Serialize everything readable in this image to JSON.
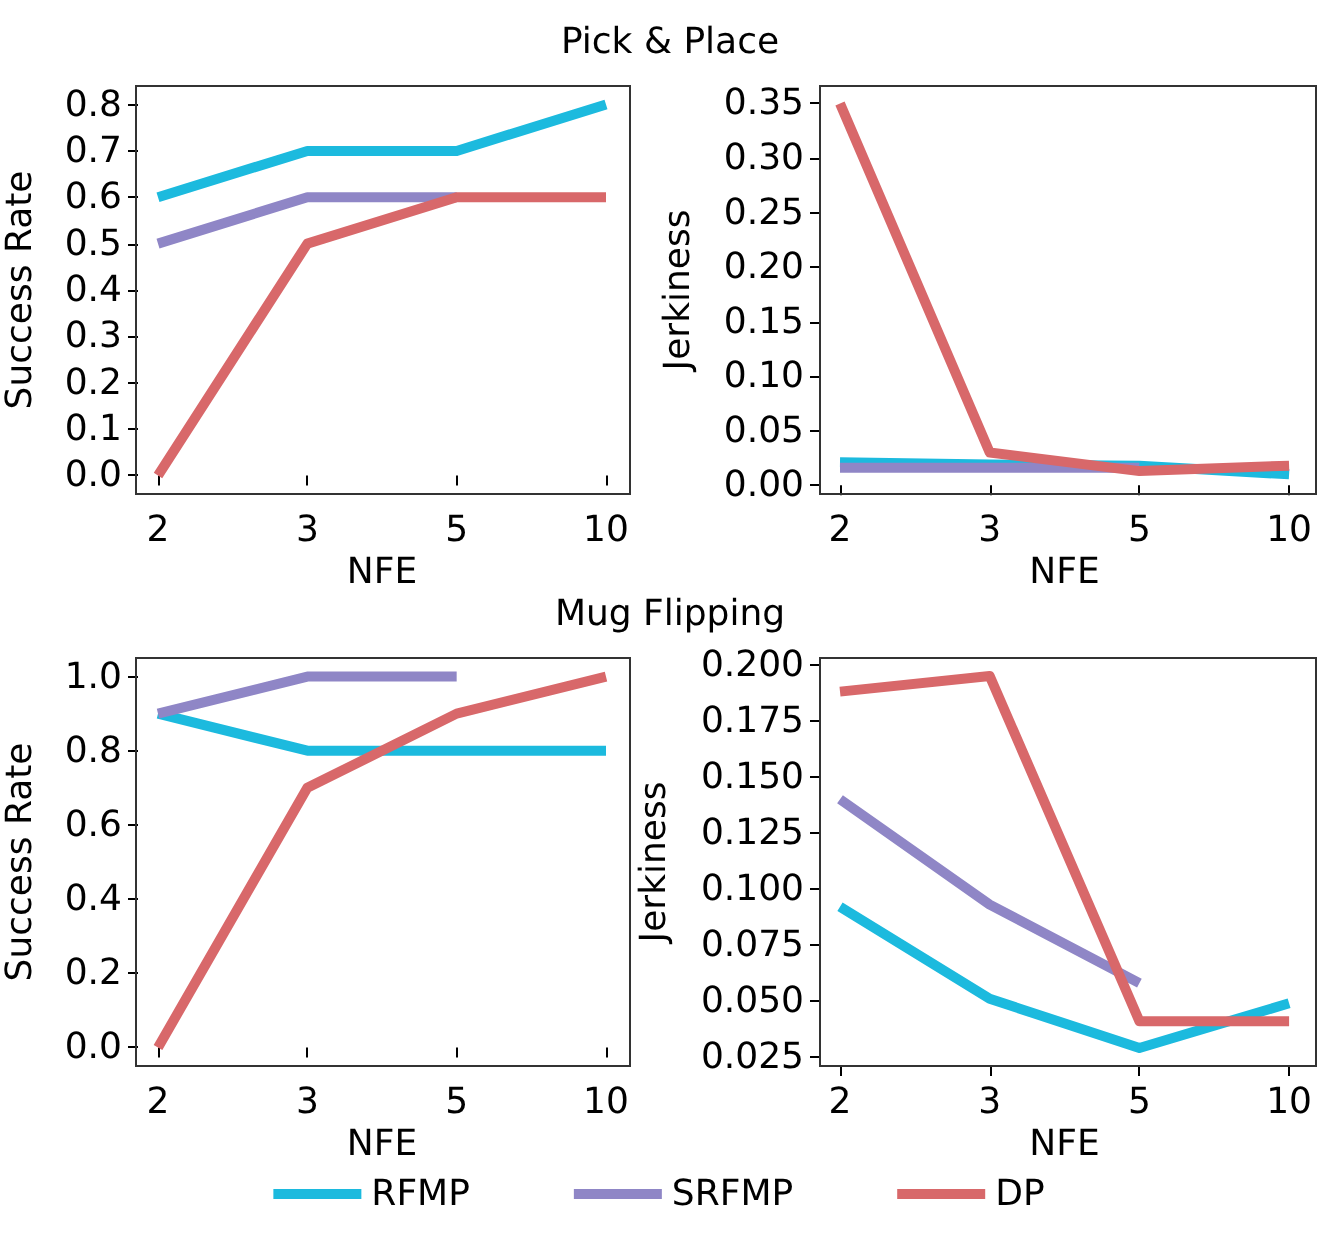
{
  "chart_data": [
    {
      "type": "line",
      "title": "Pick & Place",
      "xlabel": "NFE",
      "ylabel": "Success Rate",
      "categories": [
        "2",
        "3",
        "5",
        "10"
      ],
      "ylim": [
        -0.04,
        0.84
      ],
      "yticks": [
        {
          "value": 0,
          "label": "0.0"
        },
        {
          "value": 0.1,
          "label": "0.1"
        },
        {
          "value": 0.2,
          "label": "0.2"
        },
        {
          "value": 0.3,
          "label": "0.3"
        },
        {
          "value": 0.4,
          "label": "0.4"
        },
        {
          "value": 0.5,
          "label": "0.5"
        },
        {
          "value": 0.6,
          "label": "0.6"
        },
        {
          "value": 0.7,
          "label": "0.7"
        },
        {
          "value": 0.8,
          "label": "0.8"
        }
      ],
      "series": [
        {
          "color": "#1cbade",
          "values": [
            0.6,
            0.7,
            0.7,
            0.8
          ]
        },
        {
          "color": "#8f86c6",
          "values": [
            0.5,
            0.6,
            0.6,
            null
          ]
        },
        {
          "color": "#d8686a",
          "values": [
            0.0,
            0.5,
            0.6,
            0.6
          ]
        }
      ]
    },
    {
      "type": "line",
      "xlabel": "NFE",
      "ylabel": "Jerkiness",
      "categories": [
        "2",
        "3",
        "5",
        "10"
      ],
      "ylim": [
        -0.008,
        0.366
      ],
      "yticks": [
        {
          "value": 0,
          "label": "0.00"
        },
        {
          "value": 0.05,
          "label": "0.05"
        },
        {
          "value": 0.1,
          "label": "0.10"
        },
        {
          "value": 0.15,
          "label": "0.15"
        },
        {
          "value": 0.2,
          "label": "0.20"
        },
        {
          "value": 0.25,
          "label": "0.25"
        },
        {
          "value": 0.3,
          "label": "0.30"
        },
        {
          "value": 0.35,
          "label": "0.35"
        }
      ],
      "series": [
        {
          "color": "#1cbade",
          "values": [
            0.021,
            0.019,
            0.018,
            0.01
          ]
        },
        {
          "color": "#8f86c6",
          "values": [
            0.016,
            0.016,
            0.016,
            null
          ]
        },
        {
          "color": "#d8686a",
          "values": [
            0.35,
            0.03,
            0.013,
            0.018
          ]
        }
      ]
    },
    {
      "type": "line",
      "title": "Mug Flipping",
      "xlabel": "NFE",
      "ylabel": "Success Rate",
      "categories": [
        "2",
        "3",
        "5",
        "10"
      ],
      "ylim": [
        -0.05,
        1.05
      ],
      "yticks": [
        {
          "value": 0,
          "label": "0.0"
        },
        {
          "value": 0.2,
          "label": "0.2"
        },
        {
          "value": 0.4,
          "label": "0.4"
        },
        {
          "value": 0.6,
          "label": "0.6"
        },
        {
          "value": 0.8,
          "label": "0.8"
        },
        {
          "value": 1,
          "label": "1.0"
        }
      ],
      "series": [
        {
          "color": "#1cbade",
          "values": [
            0.9,
            0.8,
            0.8,
            0.8
          ]
        },
        {
          "color": "#8f86c6",
          "values": [
            0.9,
            1.0,
            1.0,
            null
          ]
        },
        {
          "color": "#d8686a",
          "values": [
            0.0,
            0.7,
            0.9,
            1.0
          ]
        }
      ]
    },
    {
      "type": "line",
      "xlabel": "NFE",
      "ylabel": "Jerkiness",
      "categories": [
        "2",
        "3",
        "5",
        "10"
      ],
      "ylim": [
        0.021,
        0.203
      ],
      "yticks": [
        {
          "value": 0.025,
          "label": "0.025"
        },
        {
          "value": 0.05,
          "label": "0.050"
        },
        {
          "value": 0.075,
          "label": "0.075"
        },
        {
          "value": 0.1,
          "label": "0.100"
        },
        {
          "value": 0.125,
          "label": "0.125"
        },
        {
          "value": 0.15,
          "label": "0.150"
        },
        {
          "value": 0.175,
          "label": "0.175"
        },
        {
          "value": 0.2,
          "label": "0.200"
        }
      ],
      "legend": "bottom",
      "series": [
        {
          "name": "RFMP",
          "color": "#1cbade",
          "values": [
            0.092,
            0.051,
            0.029,
            0.049
          ]
        },
        {
          "name": "SRFMP",
          "color": "#8f86c6",
          "values": [
            0.14,
            0.093,
            0.058,
            null
          ]
        },
        {
          "name": "DP",
          "color": "#d8686a",
          "values": [
            0.188,
            0.195,
            0.041,
            0.041
          ]
        }
      ]
    }
  ]
}
